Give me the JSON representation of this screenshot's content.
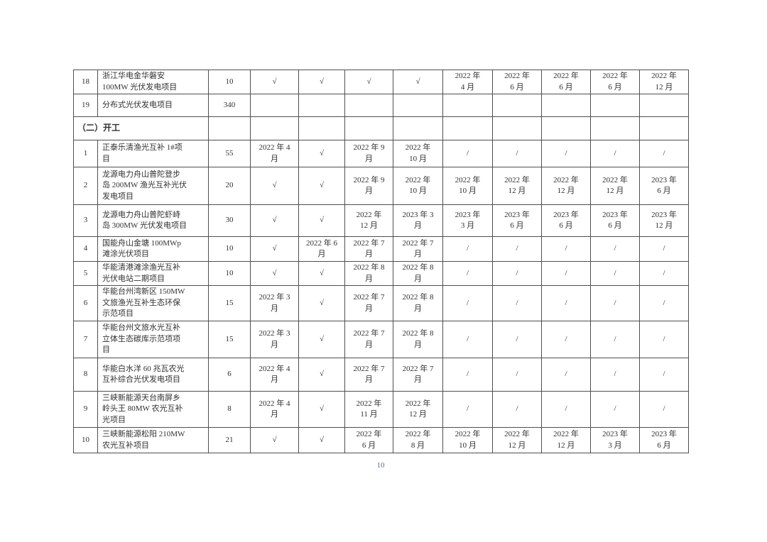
{
  "page": {
    "number": "10"
  },
  "table": {
    "section_label": "（二）开工",
    "check_mark": "√",
    "na_mark": "/",
    "rows": [
      {
        "type": "data",
        "cells": [
          "18",
          "浙江华电金华磐安\n100MW 光伏发电项目",
          "10",
          "√",
          "√",
          "√",
          "√",
          "2022 年\n4 月",
          "2022 年\n6 月",
          "2022 年\n6 月",
          "2022 年\n6 月",
          "2022 年\n12 月"
        ]
      },
      {
        "type": "data",
        "cells": [
          "19",
          "分布式光伏发电项目",
          "340",
          "",
          "",
          "",
          "",
          "",
          "",
          "",
          "",
          ""
        ]
      },
      {
        "type": "section",
        "label": "（二）开工",
        "cells": [
          "",
          "",
          "",
          "",
          "",
          "",
          "",
          "",
          "",
          ""
        ]
      },
      {
        "type": "data",
        "cells": [
          "1",
          "正泰乐清渔光互补 1#项\n目",
          "55",
          "2022 年 4\n月",
          "√",
          "2022 年 9\n月",
          "2022 年\n10 月",
          "/",
          "/",
          "/",
          "/",
          "/"
        ]
      },
      {
        "type": "data",
        "cells": [
          "2",
          "龙源电力舟山普陀登步\n岛 200MW 渔光互补光伏\n发电项目",
          "20",
          "√",
          "√",
          "2022 年 9\n月",
          "2022 年\n10 月",
          "2022 年\n10 月",
          "2022 年\n12 月",
          "2022 年\n12 月",
          "2022 年\n12 月",
          "2023 年\n6 月"
        ]
      },
      {
        "type": "data",
        "cells": [
          "3",
          "龙源电力舟山普陀虾峙\n岛 300MW 光伏发电项目",
          "30",
          "√",
          "√",
          "2022 年\n12 月",
          "2023 年 3\n月",
          "2023 年\n3 月",
          "2023 年\n6 月",
          "2023 年\n6 月",
          "2023 年\n6 月",
          "2023 年\n12 月"
        ]
      },
      {
        "type": "data",
        "cells": [
          "4",
          "国能舟山金塘 100MWp\n滩涂光伏项目",
          "10",
          "√",
          "2022 年 6\n月",
          "2022 年 7\n月",
          "2022 年 7\n月",
          "/",
          "/",
          "/",
          "/",
          "/"
        ]
      },
      {
        "type": "data",
        "cells": [
          "5",
          "华能清港滩涂渔光互补\n光伏电站二期项目",
          "10",
          "√",
          "√",
          "2022 年 8\n月",
          "2022 年 8\n月",
          "/",
          "/",
          "/",
          "/",
          "/"
        ]
      },
      {
        "type": "data",
        "cells": [
          "6",
          "华能台州湾新区 150MW\n文旅渔光互补生态环保\n示范项目",
          "15",
          "2022 年 3\n月",
          "√",
          "2022 年 7\n月",
          "2022 年 8\n月",
          "/",
          "/",
          "/",
          "/",
          "/"
        ]
      },
      {
        "type": "data",
        "cells": [
          "7",
          "华能台州文旅水光互补\n立体生态碳库示范项项\n目",
          "15",
          "2022 年 3\n月",
          "√",
          "2022 年 7\n月",
          "2022 年 8\n月",
          "/",
          "/",
          "/",
          "/",
          "/"
        ]
      },
      {
        "type": "data",
        "cells": [
          "8",
          "华能白水洋 60 兆瓦农光\n互补综合光伏发电项目",
          "6",
          "2022 年 4\n月",
          "√",
          "2022 年 7\n月",
          "2022 年 7\n月",
          "/",
          "/",
          "/",
          "/",
          "/"
        ]
      },
      {
        "type": "data",
        "cells": [
          "9",
          "三峡新能源天台南屏乡\n岭头王 80MW 农光互补\n光项目",
          "8",
          "2022 年 4\n月",
          "√",
          "2022 年\n11 月",
          "2022 年\n12 月",
          "/",
          "/",
          "/",
          "/",
          "/"
        ]
      },
      {
        "type": "data",
        "cells": [
          "10",
          "三峡新能源松阳 210MW\n农光互补项目",
          "21",
          "√",
          "√",
          "2022 年\n6 月",
          "2022 年\n8 月",
          "2022 年\n10 月",
          "2022 年\n12 月",
          "2022 年\n12 月",
          "2023 年\n3 月",
          "2023 年\n6 月"
        ]
      }
    ]
  }
}
